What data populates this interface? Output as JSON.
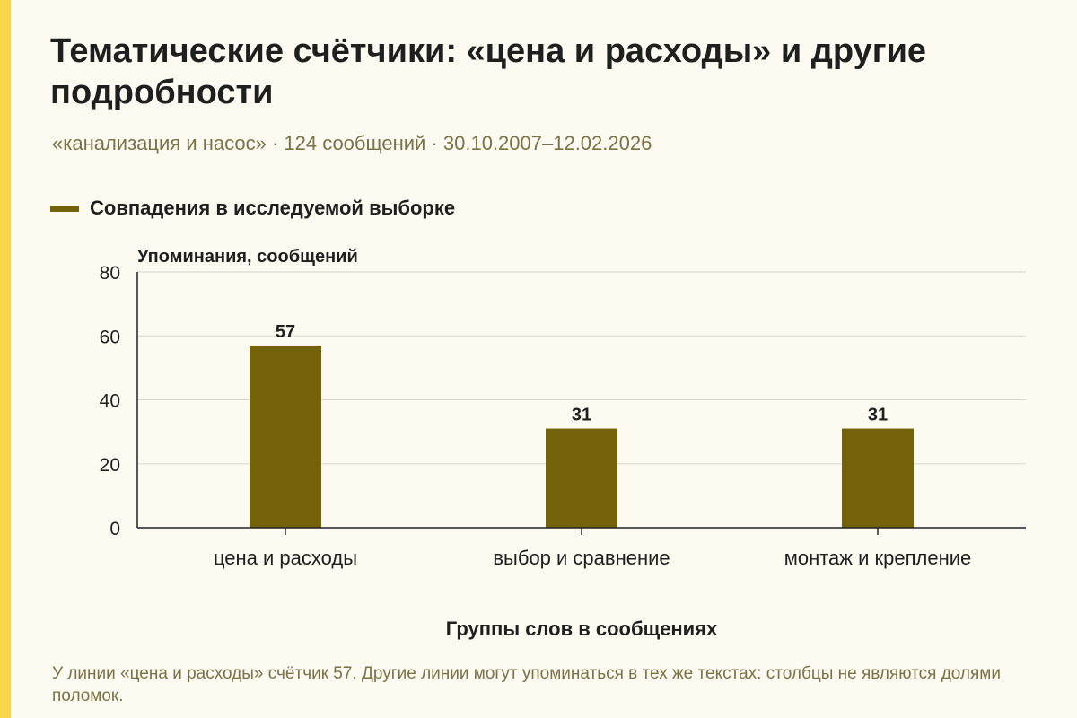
{
  "header": {
    "title": "Тематические счётчики: «цена и расходы» и другие подробности",
    "subtitle": "«канализация и насос» · 124 сообщений · 30.10.2007–12.02.2026"
  },
  "colors": {
    "accent": "#f8d84a",
    "bar": "#736209",
    "background": "#fcfaf1",
    "grid": "#d9d6cb",
    "muted_text": "#7b7246"
  },
  "chart_data": {
    "type": "bar",
    "categories": [
      "цена и расходы",
      "выбор и сравнение",
      "монтаж и крепление"
    ],
    "series": [
      {
        "name": "Совпадения в исследуемой выборке",
        "values": [
          57,
          31,
          31
        ]
      }
    ],
    "xlabel": "Группы слов в сообщениях",
    "ylabel": "Упоминания, сообщений",
    "ylim": [
      0,
      80
    ],
    "yticks": [
      0,
      20,
      40,
      60,
      80
    ],
    "grid": true,
    "legend_position": "top-left",
    "data_labels": true
  },
  "footnote": "У линии «цена и расходы» счётчик 57. Другие линии могут упоминаться в тех же текстах: столбцы не являются долями поломок."
}
